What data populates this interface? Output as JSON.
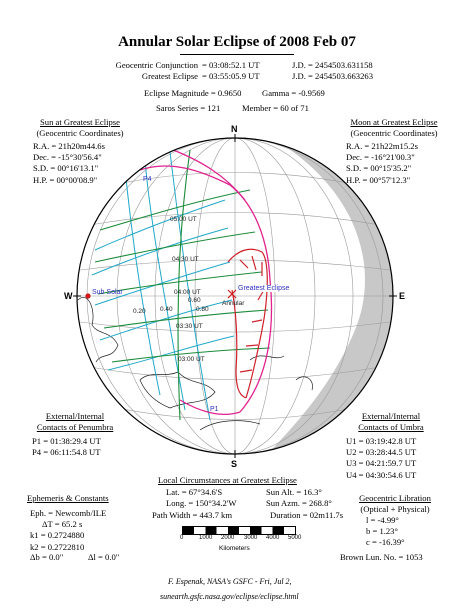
{
  "title": "Annular Solar Eclipse of  2008 Feb 07",
  "header": {
    "conjunction_label": "Geocentric Conjunction",
    "conjunction_value": "= 03:08:52.1 UT",
    "conjunction_jd": "J.D. = 2454503.631158",
    "greatest_label": "Greatest Eclipse",
    "greatest_value": "= 03:55:05.9 UT",
    "greatest_jd": "J.D. = 2454503.663263",
    "magnitude": "Eclipse Magnitude = 0.9650",
    "gamma": "Gamma = -0.9569",
    "saros": "Saros Series = 121",
    "member": "Member = 60 of 71"
  },
  "sun": {
    "heading1": "Sun at Greatest Eclipse",
    "heading2": "(Geocentric Coordinates)",
    "ra": "R.A. = 21h20m44.6s",
    "dec": "Dec. = -15°30'56.4\"",
    "sd": "S.D. = 00°16'13.1\"",
    "hp": "H.P. = 00°00'08.9\""
  },
  "moon": {
    "heading1": "Moon at Greatest Eclipse",
    "heading2": "(Geocentric Coordinates)",
    "ra": "R.A. = 21h22m15.2s",
    "dec": "Dec. = -16°21'00.3\"",
    "sd": "S.D. = 00°15'35.2\"",
    "hp": "H.P. = 00°57'12.3\""
  },
  "compass": {
    "n": "N",
    "s": "S",
    "e": "E",
    "w": "W"
  },
  "map_labels": {
    "sub_solar": "Sub Solar",
    "greatest_eclipse": "Greatest Eclipse",
    "annular": "Annular",
    "p1": "P1",
    "p4": "P4",
    "t0500": "05:00 UT",
    "t0430": "04:30 UT",
    "t0400": "04:00 UT",
    "t0330": "03:30 UT",
    "t0300": "03:00 UT",
    "m020": "0.20",
    "m040": "0.40",
    "m060": "0.60",
    "m080": "0.80"
  },
  "penumbra": {
    "heading1": "External/Internal",
    "heading2": "Contacts of Penumbra",
    "p1": "P1 = 01:38:29.4 UT",
    "p4": "P4 = 06:11:54.8 UT"
  },
  "umbra": {
    "heading1": "External/Internal",
    "heading2": "Contacts of Umbra",
    "u1": "U1 = 03:19:42.8 UT",
    "u2": "U2 = 03:28:44.5 UT",
    "u3": "U3 = 04:21:59.7 UT",
    "u4": "U4 = 04:30:54.6 UT"
  },
  "local": {
    "heading": "Local Circumstances at Greatest Eclipse",
    "lat": "Lat. = 67°34.6'S",
    "long": "Long. = 150°34.2'W",
    "sun_alt": "Sun Alt. = 16.3°",
    "sun_azm": "Sun Azm. = 268.8°",
    "path_width": "Path Width = 443.7 km",
    "duration": "Duration = 02m11.7s"
  },
  "ephemeris": {
    "heading": "Ephemeris & Constants",
    "eph": "Eph. = Newcomb/ILE",
    "dt": "ΔT = 65.2 s",
    "k1": "k1 = 0.2724880",
    "k2": "k2 = 0.2722810",
    "db": "Δb = 0.0\"",
    "dl": "Δl = 0.0\""
  },
  "libration": {
    "heading": "Geocentric Libration",
    "subheading": "(Optical + Physical)",
    "l": "l = -4.99°",
    "b": "b = 1.23°",
    "c": "c = -16.39°",
    "brown": "Brown Lun. No. = 1053"
  },
  "scale": {
    "ticks": [
      "0",
      "1000",
      "2000",
      "3000",
      "4000",
      "5000"
    ],
    "unit": "Kilometers"
  },
  "footer": {
    "credit": "F. Espenak, NASA's GSFC - Fri, Jul 2,",
    "url": "sunearth.gsfc.nasa.gov/eclipse/eclipse.html"
  },
  "colors": {
    "penumbra_limit": "#e0228f",
    "umbra_path": "#d0202a",
    "time_lines": "#1a8b3a",
    "magnitude_lines": "#20a8c8",
    "night_side": "#c8c8c8",
    "sub_solar": "#d01818",
    "label_blue": "#3030c0"
  }
}
